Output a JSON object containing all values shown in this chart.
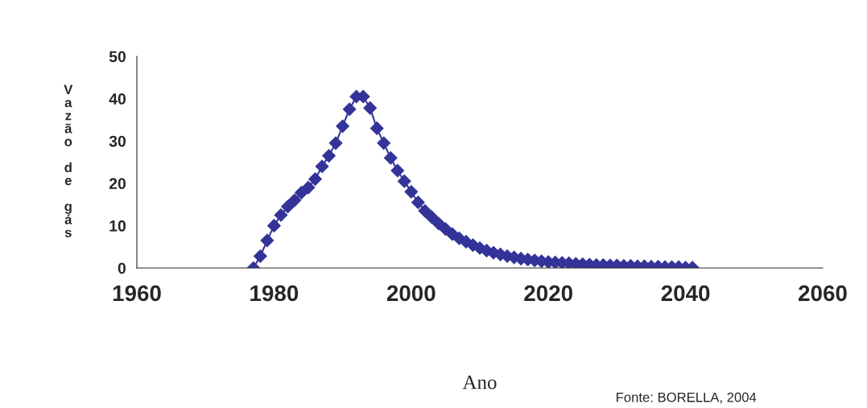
{
  "chart_data": {
    "type": "line",
    "xlabel": "Ano",
    "ylabel": "Vazão de gás",
    "marker": "diamond",
    "line_style": "solid",
    "grid": false,
    "legend": false,
    "x": [
      1977,
      1978,
      1979,
      1980,
      1981,
      1982,
      1983,
      1984,
      1985,
      1986,
      1987,
      1988,
      1989,
      1990,
      1991,
      1992,
      1993,
      1994,
      1995,
      1996,
      1997,
      1998,
      1999,
      2000,
      2001,
      2002,
      2003,
      2004,
      2005,
      2006,
      2007,
      2008,
      2009,
      2010,
      2011,
      2012,
      2013,
      2014,
      2015,
      2016,
      2017,
      2018,
      2019,
      2020,
      2021,
      2022,
      2023,
      2024,
      2025,
      2026,
      2027,
      2028,
      2029,
      2030,
      2031,
      2032,
      2033,
      2034,
      2035,
      2036,
      2037,
      2038,
      2039,
      2040,
      2041
    ],
    "series": [
      {
        "color": "#333399",
        "values": [
          0,
          2.8,
          6.5,
          10,
          12.5,
          14.5,
          16,
          17.8,
          19,
          21,
          24,
          26.5,
          29.5,
          33.5,
          37.5,
          40.5,
          40.5,
          37.8,
          33,
          29.5,
          26,
          23,
          20.5,
          18,
          15.5,
          13.5,
          12,
          10.5,
          9.2,
          8,
          7,
          6.2,
          5.4,
          4.7,
          4.1,
          3.6,
          3.2,
          2.8,
          2.5,
          2.2,
          2,
          1.8,
          1.6,
          1.4,
          1.3,
          1.2,
          1.1,
          1,
          0.9,
          0.8,
          0.7,
          0.7,
          0.6,
          0.6,
          0.5,
          0.5,
          0.4,
          0.4,
          0.3,
          0.3,
          0.2,
          0.2,
          0.2,
          0.1,
          0.1
        ]
      }
    ],
    "xlim": [
      1960,
      2060
    ],
    "xticks": [
      1960,
      1980,
      2000,
      2020,
      2040,
      2060
    ],
    "ylim": [
      0,
      50
    ],
    "yticks": [
      0,
      10,
      20,
      30,
      40,
      50
    ],
    "annotations": [
      "Fonte: BORELLA, 2004"
    ]
  }
}
